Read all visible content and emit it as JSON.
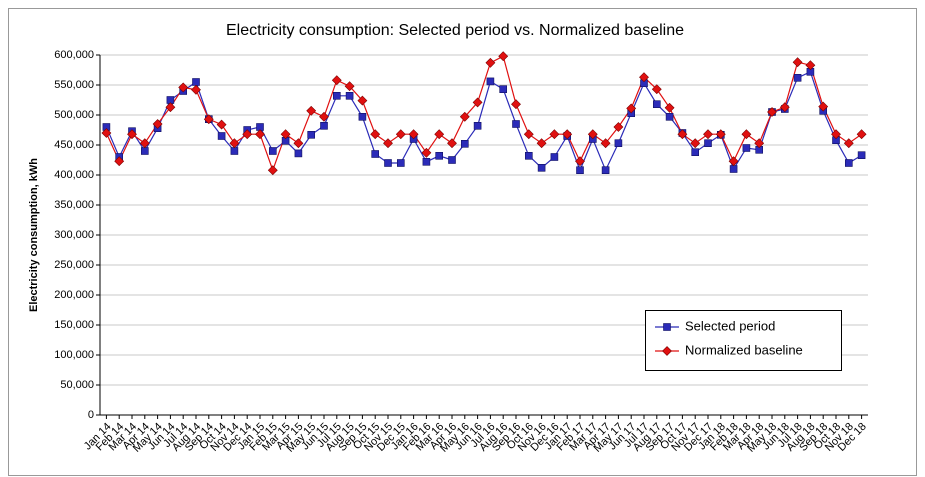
{
  "chart_data": {
    "type": "line",
    "title": "Electricity consumption: Selected period vs. Normalized baseline",
    "y_label": "Electricity consumption, kWh",
    "categories": [
      "Jan 14",
      "Feb 14",
      "Mar 14",
      "Apr 14",
      "May 14",
      "Jun 14",
      "Jul 14",
      "Aug 14",
      "Sep 14",
      "Oct 14",
      "Nov 14",
      "Dec 14",
      "Jan 15",
      "Feb 15",
      "Mar 15",
      "Apr 15",
      "May 15",
      "Jun 15",
      "Jul 15",
      "Aug 15",
      "Sep 15",
      "Oct 15",
      "Nov 15",
      "Dec 15",
      "Jan 16",
      "Feb 16",
      "Mar 16",
      "Apr 16",
      "May 16",
      "Jun 16",
      "Jul 16",
      "Aug 16",
      "Sep 16",
      "Oct 16",
      "Nov 16",
      "Dec 16",
      "Jan 17",
      "Feb 17",
      "Mar 17",
      "Apr 17",
      "May 17",
      "Jun 17",
      "Jul 17",
      "Aug 17",
      "Sep 17",
      "Oct 17",
      "Nov 17",
      "Dec 17",
      "Jan 18",
      "Feb 18",
      "Mar 18",
      "Apr 18",
      "May 18",
      "Jun 18",
      "Jul 18",
      "Aug 18",
      "Sep 18",
      "Oct 18",
      "Nov 18",
      "Dec 18"
    ],
    "series": [
      {
        "name": "Selected period",
        "color": "#2b2bb8",
        "marker": "square",
        "values": [
          480000,
          430000,
          473000,
          440000,
          478000,
          525000,
          540000,
          555000,
          493000,
          465000,
          440000,
          475000,
          480000,
          440000,
          457000,
          436000,
          467000,
          482000,
          532000,
          532000,
          497000,
          435000,
          420000,
          420000,
          460000,
          422000,
          432000,
          425000,
          452000,
          482000,
          556000,
          543000,
          485000,
          432000,
          412000,
          430000,
          465000,
          408000,
          460000,
          408000,
          453000,
          503000,
          553000,
          518000,
          497000,
          470000,
          438000,
          453000,
          467000,
          410000,
          445000,
          442000,
          505000,
          510000,
          562000,
          572000,
          507000,
          458000,
          420000,
          433000
        ]
      },
      {
        "name": "Normalized baseline",
        "color": "#e01010",
        "marker": "diamond",
        "values": [
          470000,
          423000,
          468000,
          453000,
          485000,
          513000,
          546000,
          542000,
          493000,
          484000,
          453000,
          468000,
          468000,
          408000,
          468000,
          453000,
          507000,
          497000,
          558000,
          548000,
          524000,
          468000,
          453000,
          468000,
          468000,
          437000,
          468000,
          453000,
          497000,
          521000,
          587000,
          598000,
          518000,
          468000,
          453000,
          468000,
          468000,
          423000,
          468000,
          453000,
          480000,
          511000,
          563000,
          543000,
          512000,
          468000,
          453000,
          468000,
          468000,
          423000,
          468000,
          453000,
          505000,
          513000,
          588000,
          583000,
          514000,
          468000,
          453000,
          468000
        ]
      }
    ],
    "ylim": [
      0,
      600000
    ],
    "yticks": [
      0,
      {
        "value": 50000,
        "label": "50,000"
      },
      {
        "value": 100000,
        "label": "100,000"
      },
      {
        "value": 150000,
        "label": "150,000"
      },
      {
        "value": 200000,
        "label": "200,000"
      },
      {
        "value": 250000,
        "label": "250,000"
      },
      {
        "value": 300000,
        "label": "300,000"
      },
      {
        "value": 350000,
        "label": "350,000"
      },
      {
        "value": 400000,
        "label": "400,000"
      },
      {
        "value": 450000,
        "label": "450,000"
      },
      {
        "value": 500000,
        "label": "500,000"
      },
      {
        "value": 550000,
        "label": "550,000"
      },
      {
        "value": 600000,
        "label": "600,000"
      }
    ],
    "grid": true,
    "legend": "lower right"
  }
}
